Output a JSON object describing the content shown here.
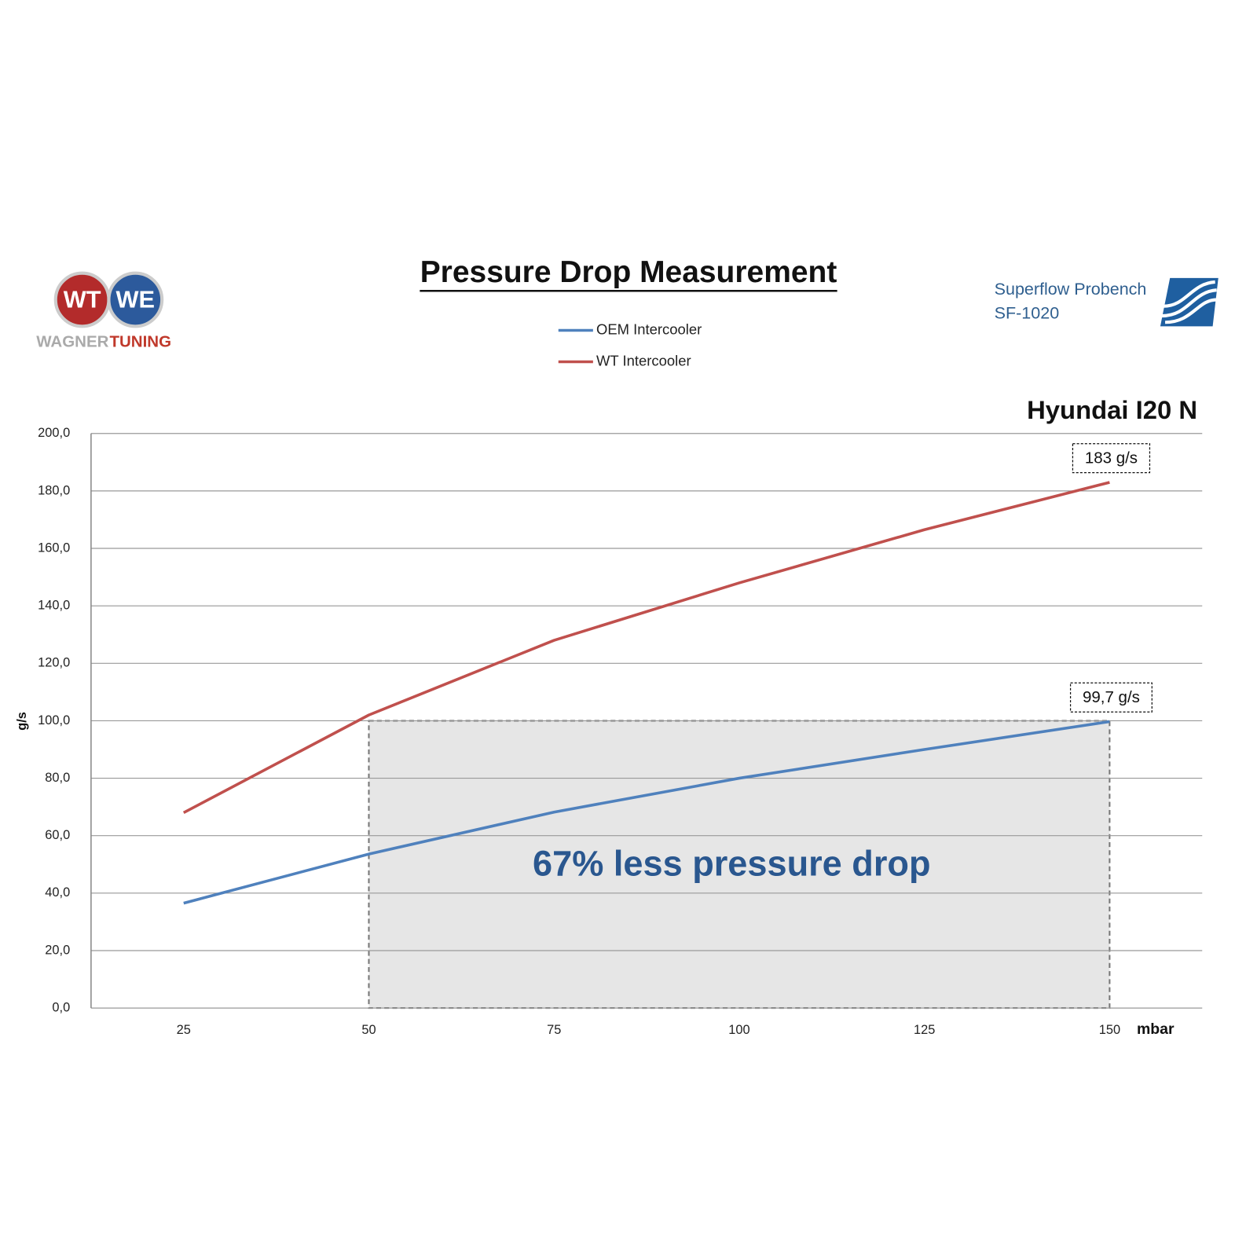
{
  "chart_data": {
    "type": "line",
    "title": "Pressure Drop Measurement",
    "subtitle": "Hyundai I20 N",
    "source": [
      "Superflow Probench",
      "SF-1020"
    ],
    "logo": {
      "badges": [
        "WT",
        "WE"
      ],
      "wordmark": [
        "WAGNER",
        "TUNING"
      ]
    },
    "x_label": "mbar",
    "y_label": "g/s",
    "x": [
      25,
      50,
      75,
      100,
      125,
      150
    ],
    "xlim": [
      12.5,
      162.5
    ],
    "xticks": [
      25,
      50,
      75,
      100,
      125,
      150
    ],
    "ylim": [
      0,
      200
    ],
    "yticks": [
      {
        "value": 0,
        "label": "0,0"
      },
      {
        "value": 20,
        "label": "20,0"
      },
      {
        "value": 40,
        "label": "40,0"
      },
      {
        "value": 60,
        "label": "60,0"
      },
      {
        "value": 80,
        "label": "80,0"
      },
      {
        "value": 100,
        "label": "100,0"
      },
      {
        "value": 120,
        "label": "120,0"
      },
      {
        "value": 140,
        "label": "140,0"
      },
      {
        "value": 160,
        "label": "160,0"
      },
      {
        "value": 180,
        "label": "180,0"
      },
      {
        "value": 200,
        "label": "200,0"
      }
    ],
    "grid": true,
    "series": [
      {
        "name": "OEM Intercooler",
        "color": "#4f81bd",
        "values": [
          36.5,
          53.6,
          68.2,
          80,
          90,
          99.7
        ]
      },
      {
        "name": "WT Intercooler",
        "color": "#c0504d",
        "values": [
          68,
          102,
          128,
          148,
          166.5,
          183
        ]
      }
    ],
    "shaded_region": {
      "x": [
        50,
        150
      ],
      "y": [
        0,
        100
      ]
    },
    "annotations": [
      {
        "text": "183 g/s",
        "series": 1,
        "index": 5
      },
      {
        "text": "99,7 g/s",
        "series": 0,
        "index": 5
      },
      {
        "text": "67% less pressure drop"
      }
    ]
  }
}
